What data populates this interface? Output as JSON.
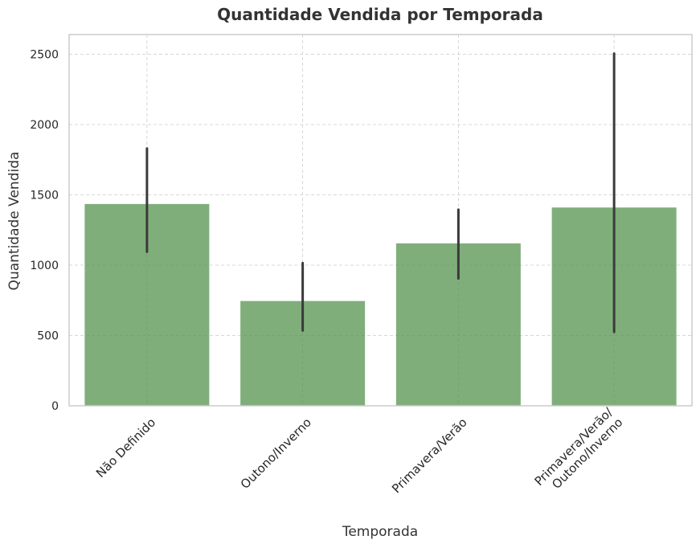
{
  "chart_data": {
    "type": "bar",
    "title": "Quantidade Vendida por Temporada",
    "xlabel": "Temporada",
    "ylabel": "Quantidade Vendida",
    "categories": [
      "Não Definido",
      "Outono/Inverno",
      "Primavera/Verão",
      "Primavera/Verão/\nOutono/Inverno"
    ],
    "values": [
      1435,
      745,
      1155,
      1410
    ],
    "error_low": [
      1095,
      535,
      905,
      525
    ],
    "error_high": [
      1830,
      1015,
      1395,
      2505
    ],
    "ylim": [
      0,
      2640
    ],
    "yticks": [
      0,
      500,
      1000,
      1500,
      2000,
      2500
    ],
    "grid": true,
    "bar_color": "#55934f",
    "error_color": "#3a3a3a"
  }
}
